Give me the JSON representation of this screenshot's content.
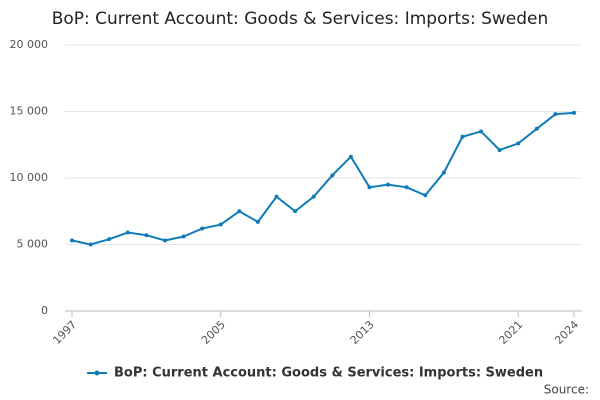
{
  "chart_data": {
    "type": "line",
    "title": "BoP: Current Account: Goods & Services: Imports: Sweden",
    "x": [
      1997,
      1998,
      1999,
      2000,
      2001,
      2002,
      2003,
      2004,
      2005,
      2006,
      2007,
      2008,
      2009,
      2010,
      2011,
      2012,
      2013,
      2014,
      2015,
      2016,
      2017,
      2018,
      2019,
      2020,
      2021,
      2022,
      2023,
      2024
    ],
    "series": [
      {
        "name": "BoP: Current Account: Goods & Services: Imports: Sweden",
        "color": "#0f7cb6",
        "values": [
          5300,
          5000,
          5400,
          5900,
          5700,
          5300,
          5600,
          6200,
          6500,
          7500,
          6700,
          8600,
          7500,
          8600,
          10200,
          11600,
          9300,
          9500,
          9300,
          8700,
          10400,
          13100,
          13500,
          12100,
          12600,
          13700,
          14800,
          14900
        ]
      }
    ],
    "xlim": [
      1997,
      2024
    ],
    "xticks": [
      1997,
      2005,
      2013,
      2021,
      2024
    ],
    "ylim": [
      0,
      20000
    ],
    "yticks": [
      0,
      {
        "value": 5000,
        "label": "5 000"
      },
      {
        "value": 10000,
        "label": "10 000"
      },
      {
        "value": 15000,
        "label": "15 000"
      },
      {
        "value": 20000,
        "label": "20 000"
      }
    ],
    "grid": true,
    "legend": "bottom",
    "source": "Source:"
  }
}
